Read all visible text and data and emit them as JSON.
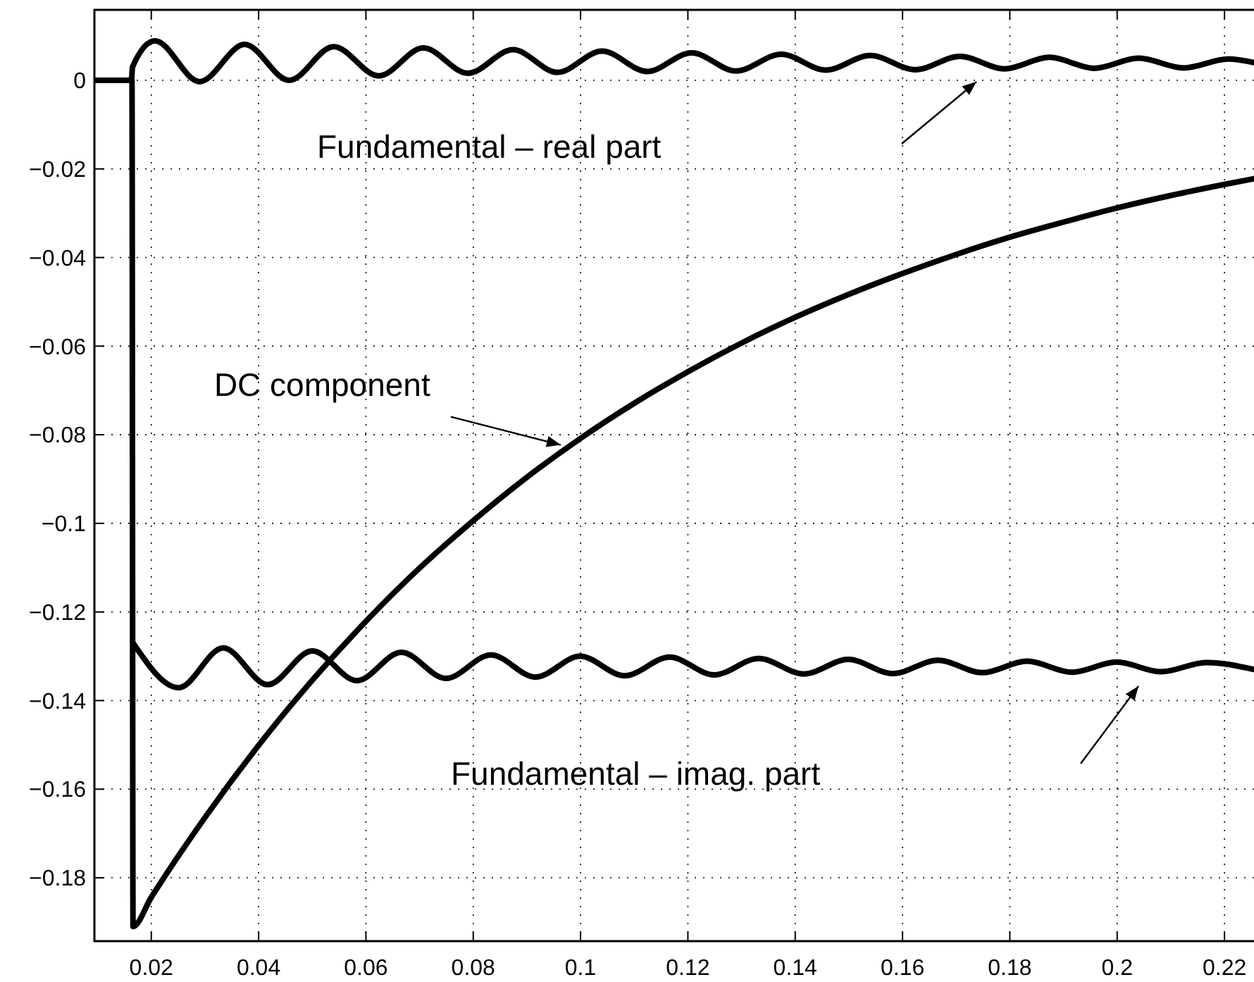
{
  "chart_data": {
    "type": "line",
    "xlim": [
      0.0094,
      0.2255
    ],
    "ylim": [
      -0.1943,
      0.0159
    ],
    "xticks": [
      0.02,
      0.04,
      0.06,
      0.08,
      0.1,
      0.12,
      0.14,
      0.16,
      0.18,
      0.2,
      0.22
    ],
    "yticks": [
      {
        "value": -0.18,
        "label": "−0.18"
      },
      {
        "value": -0.16,
        "label": "−0.16"
      },
      {
        "value": -0.14,
        "label": "−0.14"
      },
      {
        "value": -0.12,
        "label": "−0.12"
      },
      {
        "value": -0.1,
        "label": "−0.1"
      },
      {
        "value": -0.08,
        "label": "−0.08"
      },
      {
        "value": -0.06,
        "label": "−0.06"
      },
      {
        "value": -0.04,
        "label": "−0.04"
      },
      {
        "value": -0.02,
        "label": "−0.02"
      },
      0
    ],
    "grid": true,
    "line_style": "solid",
    "series": [
      {
        "color": "#000000",
        "x": [
          0.0094,
          0.0163,
          0.0165,
          0.0207,
          0.029,
          0.0374,
          0.0457,
          0.054,
          0.0624,
          0.0707,
          0.079,
          0.0874,
          0.0957,
          0.104,
          0.1124,
          0.1207,
          0.129,
          0.1374,
          0.1457,
          0.154,
          0.1624,
          0.1707,
          0.179,
          0.1874,
          0.1957,
          0.204,
          0.2124,
          0.2207,
          0.2255
        ],
        "values": [
          0,
          0,
          0.003,
          0.0089,
          -0.0003,
          0.0081,
          0,
          0.0076,
          0.001,
          0.0073,
          0.0016,
          0.0069,
          0.0018,
          0.0066,
          0.002,
          0.0062,
          0.0021,
          0.0059,
          0.0023,
          0.0056,
          0.0024,
          0.0054,
          0.0026,
          0.0052,
          0.0027,
          0.005,
          0.0028,
          0.0048,
          0.004
        ]
      },
      {
        "color": "#000000",
        "x": [
          0.0094,
          0.0164,
          0.0166,
          0.02,
          0.03,
          0.04,
          0.05,
          0.06,
          0.07,
          0.08,
          0.09,
          0.1,
          0.11,
          0.12,
          0.13,
          0.14,
          0.15,
          0.16,
          0.17,
          0.18,
          0.19,
          0.2,
          0.21,
          0.22,
          0.2255
        ],
        "values": [
          0,
          0,
          -0.191,
          -0.1844,
          -0.1664,
          -0.1501,
          -0.1354,
          -0.1221,
          -0.1101,
          -0.0994,
          -0.0896,
          -0.0808,
          -0.0729,
          -0.0658,
          -0.0593,
          -0.0535,
          -0.0483,
          -0.0436,
          -0.0393,
          -0.0354,
          -0.032,
          -0.0288,
          -0.026,
          -0.0235,
          -0.0222
        ]
      },
      {
        "color": "#000000",
        "x": [
          0.0166,
          0.0251,
          0.0334,
          0.0417,
          0.05,
          0.0583,
          0.0666,
          0.0749,
          0.0833,
          0.0916,
          0.0999,
          0.1082,
          0.1166,
          0.1249,
          0.1332,
          0.1416,
          0.1499,
          0.1582,
          0.1666,
          0.1749,
          0.1832,
          0.1916,
          0.1999,
          0.2082,
          0.2166,
          0.2255
        ],
        "values": [
          -0.127,
          -0.1371,
          -0.1281,
          -0.1364,
          -0.1288,
          -0.1355,
          -0.1291,
          -0.135,
          -0.1297,
          -0.1347,
          -0.13,
          -0.1344,
          -0.1302,
          -0.1342,
          -0.1305,
          -0.134,
          -0.1307,
          -0.1339,
          -0.1309,
          -0.1337,
          -0.1311,
          -0.1336,
          -0.1313,
          -0.1335,
          -0.1314,
          -0.133
        ]
      }
    ],
    "annotations": [
      "Fundamental – real part",
      {
        "text": "DC component",
        "x": 0.0963,
        "y": -0.0823
      },
      "Fundamental – imag. part"
    ]
  }
}
